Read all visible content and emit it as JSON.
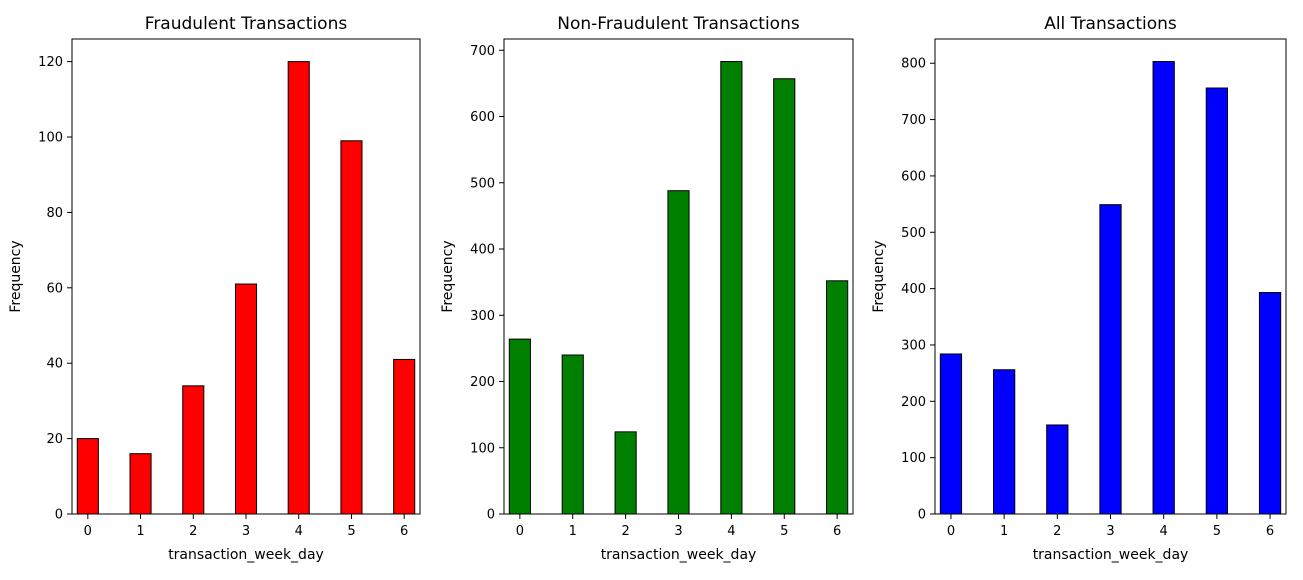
{
  "chart_data": [
    {
      "type": "bar",
      "title": "Fraudulent Transactions",
      "xlabel": "transaction_week_day",
      "ylabel": "Frequency",
      "color": "#ff0000",
      "x": [
        0,
        1,
        2,
        3,
        4,
        5,
        6
      ],
      "values": [
        20,
        16,
        34,
        61,
        120,
        99,
        41
      ],
      "x_ticks": [
        0,
        1,
        2,
        3,
        4,
        5,
        6
      ],
      "y_ticks": [
        0,
        20,
        40,
        60,
        80,
        100,
        120
      ],
      "xlim": [
        -0.3,
        6.3
      ],
      "ylim": [
        0,
        126
      ],
      "grid": false
    },
    {
      "type": "bar",
      "title": "Non-Fraudulent Transactions",
      "xlabel": "transaction_week_day",
      "ylabel": "Frequency",
      "color": "#008000",
      "x": [
        0,
        1,
        2,
        3,
        4,
        5,
        6
      ],
      "values": [
        264,
        240,
        124,
        488,
        683,
        657,
        352
      ],
      "x_ticks": [
        0,
        1,
        2,
        3,
        4,
        5,
        6
      ],
      "y_ticks": [
        0,
        100,
        200,
        300,
        400,
        500,
        600,
        700
      ],
      "xlim": [
        -0.3,
        6.3
      ],
      "ylim": [
        0,
        717
      ],
      "grid": false
    },
    {
      "type": "bar",
      "title": "All Transactions",
      "xlabel": "transaction_week_day",
      "ylabel": "Frequency",
      "color": "#0000ff",
      "x": [
        0,
        1,
        2,
        3,
        4,
        5,
        6
      ],
      "values": [
        284,
        256,
        158,
        549,
        803,
        756,
        393
      ],
      "x_ticks": [
        0,
        1,
        2,
        3,
        4,
        5,
        6
      ],
      "y_ticks": [
        0,
        100,
        200,
        300,
        400,
        500,
        600,
        700,
        800
      ],
      "xlim": [
        -0.3,
        6.3
      ],
      "ylim": [
        0,
        843
      ],
      "grid": false
    }
  ]
}
